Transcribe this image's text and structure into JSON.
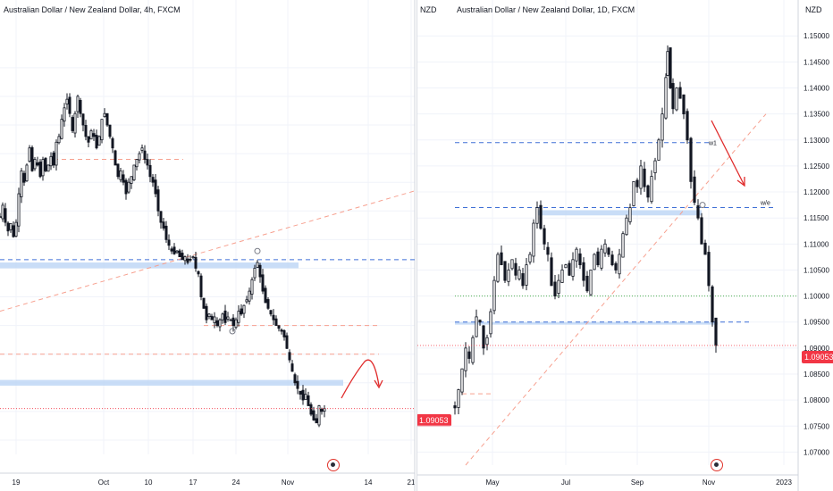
{
  "chart_data": [
    {
      "type": "candlestick",
      "title": "Australian Dollar / New Zealand Dollar, 4h, FXCM",
      "axis_caption": "NZD",
      "last_price": "1.09053",
      "y_ticks": [
        "1.15000",
        "1.14500",
        "1.14000",
        "1.13500",
        "1.13000",
        "1.12500",
        "1.12000",
        "1.11500",
        "1.11000",
        "1.10500",
        "1.10000",
        "1.09500",
        "1.09000",
        "1.08500"
      ],
      "ylim": [
        1.0825,
        1.1545
      ],
      "x_ticks": [
        "19",
        "Oct",
        "10",
        "17",
        "24",
        "Nov",
        "14",
        "21"
      ],
      "close_path": [
        [
          0,
          1.124
        ],
        [
          3,
          1.126
        ],
        [
          6,
          1.123
        ],
        [
          9,
          1.1215
        ],
        [
          12,
          1.1228
        ],
        [
          15,
          1.1205
        ],
        [
          18,
          1.123
        ],
        [
          21,
          1.128
        ],
        [
          24,
          1.132
        ],
        [
          27,
          1.13
        ],
        [
          30,
          1.133
        ],
        [
          33,
          1.136
        ],
        [
          36,
          1.132
        ],
        [
          39,
          1.134
        ],
        [
          42,
          1.133
        ],
        [
          45,
          1.131
        ],
        [
          48,
          1.134
        ],
        [
          51,
          1.132
        ],
        [
          54,
          1.133
        ],
        [
          57,
          1.1345
        ],
        [
          60,
          1.133
        ],
        [
          63,
          1.137
        ],
        [
          66,
          1.138
        ],
        [
          69,
          1.141
        ],
        [
          72,
          1.143
        ],
        [
          75,
          1.1445
        ],
        [
          78,
          1.142
        ],
        [
          81,
          1.139
        ],
        [
          84,
          1.142
        ],
        [
          87,
          1.145
        ],
        [
          90,
          1.142
        ],
        [
          93,
          1.14
        ],
        [
          96,
          1.138
        ],
        [
          99,
          1.137
        ],
        [
          102,
          1.139
        ],
        [
          105,
          1.138
        ],
        [
          108,
          1.136
        ],
        [
          111,
          1.138
        ],
        [
          114,
          1.141
        ],
        [
          117,
          1.142
        ],
        [
          120,
          1.14
        ],
        [
          123,
          1.138
        ],
        [
          126,
          1.136
        ],
        [
          129,
          1.133
        ],
        [
          132,
          1.131
        ],
        [
          135,
          1.132
        ],
        [
          138,
          1.13
        ],
        [
          141,
          1.128
        ],
        [
          144,
          1.13
        ],
        [
          147,
          1.131
        ],
        [
          150,
          1.133
        ],
        [
          153,
          1.134
        ],
        [
          156,
          1.135
        ],
        [
          159,
          1.136
        ],
        [
          162,
          1.134
        ],
        [
          165,
          1.133
        ],
        [
          168,
          1.131
        ],
        [
          171,
          1.13
        ],
        [
          174,
          1.128
        ],
        [
          177,
          1.125
        ],
        [
          180,
          1.123
        ],
        [
          183,
          1.122
        ],
        [
          186,
          1.12
        ],
        [
          189,
          1.119
        ],
        [
          192,
          1.118
        ],
        [
          195,
          1.1175
        ],
        [
          198,
          1.118
        ],
        [
          201,
          1.117
        ],
        [
          204,
          1.1165
        ],
        [
          207,
          1.117
        ],
        [
          210,
          1.116
        ],
        [
          213,
          1.1165
        ],
        [
          216,
          1.117
        ],
        [
          219,
          1.115
        ],
        [
          222,
          1.114
        ],
        [
          225,
          1.11
        ],
        [
          228,
          1.108
        ],
        [
          231,
          1.106
        ],
        [
          234,
          1.107
        ],
        [
          237,
          1.106
        ],
        [
          240,
          1.1065
        ],
        [
          243,
          1.105
        ],
        [
          246,
          1.106
        ],
        [
          249,
          1.107
        ],
        [
          252,
          1.1055
        ],
        [
          255,
          1.1065
        ],
        [
          258,
          1.106
        ],
        [
          261,
          1.105
        ],
        [
          264,
          1.106
        ],
        [
          267,
          1.1075
        ],
        [
          270,
          1.107
        ],
        [
          273,
          1.1085
        ],
        [
          276,
          1.1095
        ],
        [
          279,
          1.111
        ],
        [
          282,
          1.113
        ],
        [
          285,
          1.115
        ],
        [
          288,
          1.116
        ],
        [
          291,
          1.1135
        ],
        [
          294,
          1.111
        ],
        [
          297,
          1.109
        ],
        [
          300,
          1.108
        ],
        [
          303,
          1.107
        ],
        [
          306,
          1.106
        ],
        [
          309,
          1.105
        ],
        [
          312,
          1.1045
        ],
        [
          315,
          1.104
        ],
        [
          318,
          1.103
        ],
        [
          321,
          1.101
        ],
        [
          324,
          1.099
        ],
        [
          327,
          1.097
        ],
        [
          330,
          1.095
        ],
        [
          333,
          1.094
        ],
        [
          336,
          1.093
        ],
        [
          339,
          1.092
        ],
        [
          342,
          1.093
        ],
        [
          345,
          1.091
        ],
        [
          348,
          1.0895
        ],
        [
          351,
          1.0885
        ],
        [
          354,
          1.088
        ],
        [
          357,
          1.091
        ],
        [
          360,
          1.09
        ],
        [
          363,
          1.0905
        ]
      ]
    },
    {
      "type": "candlestick",
      "title": "Australian Dollar / New Zealand Dollar, 1D, FXCM",
      "axis_caption": "NZD",
      "last_price": "1.09053",
      "y_ticks": [
        "1.15000",
        "1.14500",
        "1.14000",
        "1.13500",
        "1.13000",
        "1.12500",
        "1.12000",
        "1.11500",
        "1.11000",
        "1.10500",
        "1.10000",
        "1.09500",
        "1.09000",
        "1.08500",
        "1.08000",
        "1.07500",
        "1.07000"
      ],
      "ylim": [
        1.0675,
        1.1545
      ],
      "x_ticks": [
        "May",
        "Jul",
        "Sep",
        "Nov",
        "2023"
      ],
      "annotations": [
        "w1",
        "w/e"
      ],
      "close_path": [
        [
          42,
          1.0785
        ],
        [
          46,
          1.082
        ],
        [
          50,
          1.086
        ],
        [
          54,
          1.09
        ],
        [
          58,
          1.088
        ],
        [
          62,
          1.092
        ],
        [
          66,
          1.096
        ],
        [
          70,
          1.095
        ],
        [
          74,
          1.09
        ],
        [
          78,
          1.092
        ],
        [
          82,
          1.097
        ],
        [
          86,
          1.103
        ],
        [
          90,
          1.108
        ],
        [
          94,
          1.106
        ],
        [
          98,
          1.103
        ],
        [
          102,
          1.105
        ],
        [
          106,
          1.107
        ],
        [
          110,
          1.104
        ],
        [
          114,
          1.105
        ],
        [
          118,
          1.102
        ],
        [
          122,
          1.106
        ],
        [
          126,
          1.108
        ],
        [
          130,
          1.114
        ],
        [
          134,
          1.117
        ],
        [
          138,
          1.113
        ],
        [
          142,
          1.11
        ],
        [
          146,
          1.108
        ],
        [
          150,
          1.102
        ],
        [
          154,
          1.1
        ],
        [
          158,
          1.103
        ],
        [
          162,
          1.105
        ],
        [
          166,
          1.106
        ],
        [
          170,
          1.104
        ],
        [
          174,
          1.107
        ],
        [
          178,
          1.109
        ],
        [
          182,
          1.106
        ],
        [
          186,
          1.103
        ],
        [
          190,
          1.101
        ],
        [
          194,
          1.105
        ],
        [
          198,
          1.108
        ],
        [
          202,
          1.106
        ],
        [
          206,
          1.109
        ],
        [
          210,
          1.11
        ],
        [
          214,
          1.108
        ],
        [
          218,
          1.106
        ],
        [
          222,
          1.105
        ],
        [
          226,
          1.108
        ],
        [
          230,
          1.112
        ],
        [
          234,
          1.115
        ],
        [
          238,
          1.117
        ],
        [
          242,
          1.122
        ],
        [
          246,
          1.121
        ],
        [
          250,
          1.125
        ],
        [
          254,
          1.121
        ],
        [
          258,
          1.119
        ],
        [
          262,
          1.123
        ],
        [
          266,
          1.126
        ],
        [
          270,
          1.13
        ],
        [
          274,
          1.135
        ],
        [
          278,
          1.142
        ],
        [
          280,
          1.147
        ],
        [
          283,
          1.14
        ],
        [
          286,
          1.136
        ],
        [
          290,
          1.14
        ],
        [
          294,
          1.138
        ],
        [
          298,
          1.135
        ],
        [
          302,
          1.13
        ],
        [
          306,
          1.122
        ],
        [
          310,
          1.118
        ],
        [
          314,
          1.115
        ],
        [
          318,
          1.11
        ],
        [
          322,
          1.108
        ],
        [
          326,
          1.102
        ],
        [
          330,
          1.095
        ],
        [
          334,
          1.0905
        ]
      ]
    }
  ]
}
